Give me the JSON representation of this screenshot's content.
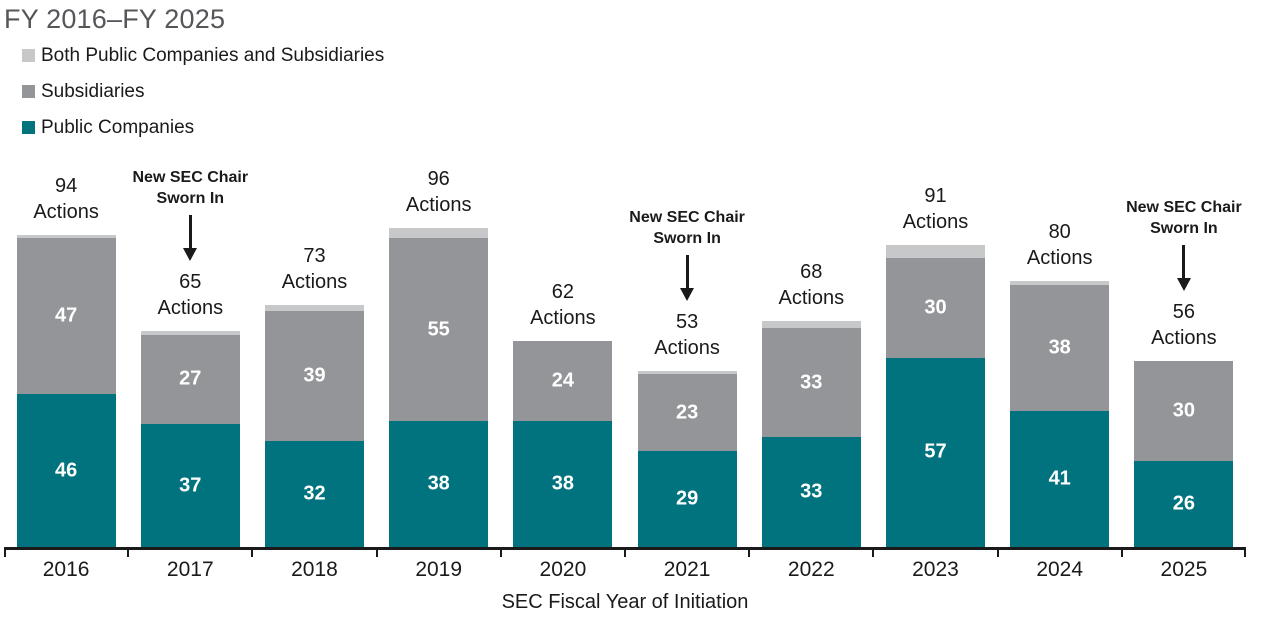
{
  "title": "FY 2016–FY 2025",
  "legend": [
    {
      "label": "Both Public Companies and Subsidiaries",
      "color": "#c7c8ca"
    },
    {
      "label": "Subsidiaries",
      "color": "#949598"
    },
    {
      "label": "Public Companies",
      "color": "#00737e"
    }
  ],
  "colors": {
    "public_companies": "#00737e",
    "subsidiaries": "#949598",
    "both": "#c7c8ca",
    "title_text": "#54565a",
    "axis_text": "#1a1a1a"
  },
  "chart_data": {
    "type": "bar",
    "stacked": true,
    "title": "FY 2016–FY 2025",
    "categories": [
      "2016",
      "2017",
      "2018",
      "2019",
      "2020",
      "2021",
      "2022",
      "2023",
      "2024",
      "2025"
    ],
    "series": [
      {
        "name": "Public Companies",
        "color": "#00737e",
        "show_value_labels": true,
        "values": [
          46,
          37,
          32,
          38,
          38,
          29,
          33,
          57,
          41,
          26
        ]
      },
      {
        "name": "Subsidiaries",
        "color": "#949598",
        "show_value_labels": true,
        "values": [
          47,
          27,
          39,
          55,
          24,
          23,
          33,
          30,
          38,
          30
        ]
      },
      {
        "name": "Both Public Companies and Subsidiaries",
        "color": "#c7c8ca",
        "show_value_labels": false,
        "values": [
          1,
          1,
          2,
          3,
          0,
          1,
          2,
          4,
          1,
          0
        ]
      }
    ],
    "totals": [
      94,
      65,
      73,
      96,
      62,
      53,
      68,
      91,
      80,
      56
    ],
    "total_label_suffix": "Actions",
    "annotations": [
      {
        "category": "2017",
        "lines": [
          "New SEC Chair",
          "Sworn In"
        ]
      },
      {
        "category": "2021",
        "lines": [
          "New SEC Chair",
          "Sworn In"
        ]
      },
      {
        "category": "2025",
        "lines": [
          "New SEC Chair",
          "Sworn In"
        ]
      }
    ],
    "xlabel": "SEC Fiscal Year of Initiation",
    "ylabel": "",
    "ylim": [
      0,
      100
    ],
    "grid": false,
    "legend_position": "top-left"
  }
}
